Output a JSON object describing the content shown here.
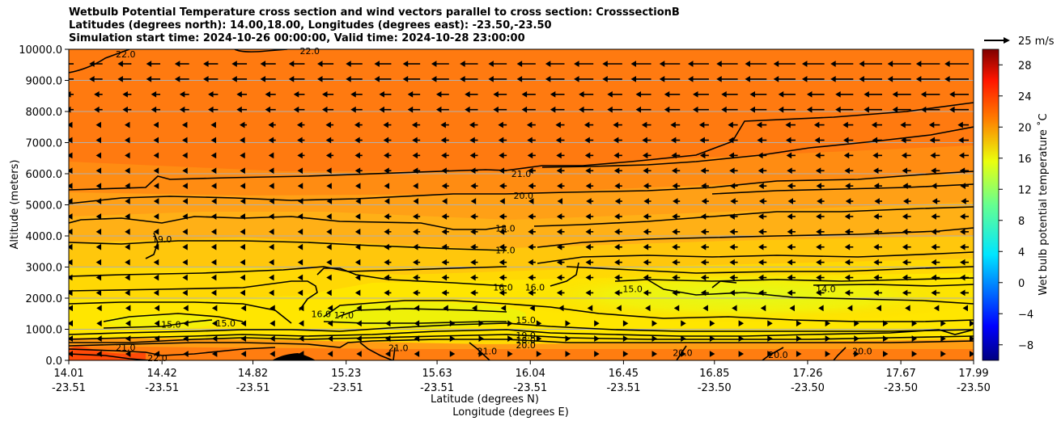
{
  "chart_data": {
    "type": "heatmap",
    "title_lines": [
      "Wetbulb Potential Temperature cross section and wind vectors parallel to cross section: CrosssectionB",
      "Latitudes (degrees north): 14.00,18.00, Longitudes (degrees east): -23.50,-23.50",
      "Simulation start time: 2024-10-26 00:00:00, Valid time: 2024-10-28 23:00:00"
    ],
    "ylabel": "Altitude (meters)",
    "xlabel": "Latitude (degrees N)",
    "xlabel2": "Longitude (degrees E)",
    "ylim": [
      0,
      10000
    ],
    "yticks": [
      "0.0",
      "1000.0",
      "2000.0",
      "3000.0",
      "4000.0",
      "5000.0",
      "6000.0",
      "7000.0",
      "8000.0",
      "9000.0",
      "10000.0"
    ],
    "xticks_lat": [
      "14.01",
      "14.42",
      "14.82",
      "15.23",
      "15.63",
      "16.04",
      "16.45",
      "16.85",
      "17.26",
      "17.67",
      "17.99"
    ],
    "xticks_lon": [
      "-23.51",
      "-23.51",
      "-23.51",
      "-23.51",
      "-23.51",
      "-23.51",
      "-23.51",
      "-23.50",
      "-23.50",
      "-23.50",
      "-23.50"
    ],
    "grid": "horizontal",
    "colorbar": {
      "label": "Wet bulb potential temperature ˚C",
      "ticks": [
        "−8",
        "−4",
        "0",
        "4",
        "8",
        "12",
        "16",
        "20",
        "24",
        "28"
      ],
      "range": [
        -10,
        30
      ],
      "colormap": "jet"
    },
    "quiver_key": "25 m/s",
    "contour_levels": [
      14.0,
      15.0,
      16.0,
      17.0,
      18.0,
      19.0,
      20.0,
      21.0,
      22.0
    ],
    "contour_labels": [
      {
        "text": "22.0",
        "lat": 14.26,
        "alt": 9850
      },
      {
        "text": "22.0",
        "lat": 15.07,
        "alt": 9950
      },
      {
        "text": "21.0",
        "lat": 16.0,
        "alt": 6000
      },
      {
        "text": "20.0",
        "lat": 16.01,
        "alt": 5300
      },
      {
        "text": "19.0",
        "lat": 14.42,
        "alt": 3900
      },
      {
        "text": "18.0",
        "lat": 15.93,
        "alt": 4250
      },
      {
        "text": "17.0",
        "lat": 15.93,
        "alt": 3550
      },
      {
        "text": "16.0",
        "lat": 15.92,
        "alt": 2350
      },
      {
        "text": "16.0",
        "lat": 16.06,
        "alt": 2350
      },
      {
        "text": "15.0",
        "lat": 16.49,
        "alt": 2300
      },
      {
        "text": "14.0",
        "lat": 17.34,
        "alt": 2300
      },
      {
        "text": "16.0",
        "lat": 15.12,
        "alt": 1500
      },
      {
        "text": "17.0",
        "lat": 15.22,
        "alt": 1450
      },
      {
        "text": "15.0",
        "lat": 14.46,
        "alt": 1150
      },
      {
        "text": "15.0",
        "lat": 14.7,
        "alt": 1200
      },
      {
        "text": "15.0",
        "lat": 16.02,
        "alt": 1300
      },
      {
        "text": "19.0",
        "lat": 16.02,
        "alt": 800
      },
      {
        "text": "18.0",
        "lat": 16.02,
        "alt": 650
      },
      {
        "text": "20.0",
        "lat": 16.02,
        "alt": 500
      },
      {
        "text": "21.0",
        "lat": 14.26,
        "alt": 420
      },
      {
        "text": "22.0",
        "lat": 14.4,
        "alt": 80
      },
      {
        "text": "21.0",
        "lat": 15.46,
        "alt": 400
      },
      {
        "text": "21.0",
        "lat": 15.85,
        "alt": 300
      },
      {
        "text": "20.0",
        "lat": 16.71,
        "alt": 250
      },
      {
        "text": "20.0",
        "lat": 17.13,
        "alt": 180
      },
      {
        "text": "20.0",
        "lat": 17.5,
        "alt": 300
      }
    ]
  }
}
